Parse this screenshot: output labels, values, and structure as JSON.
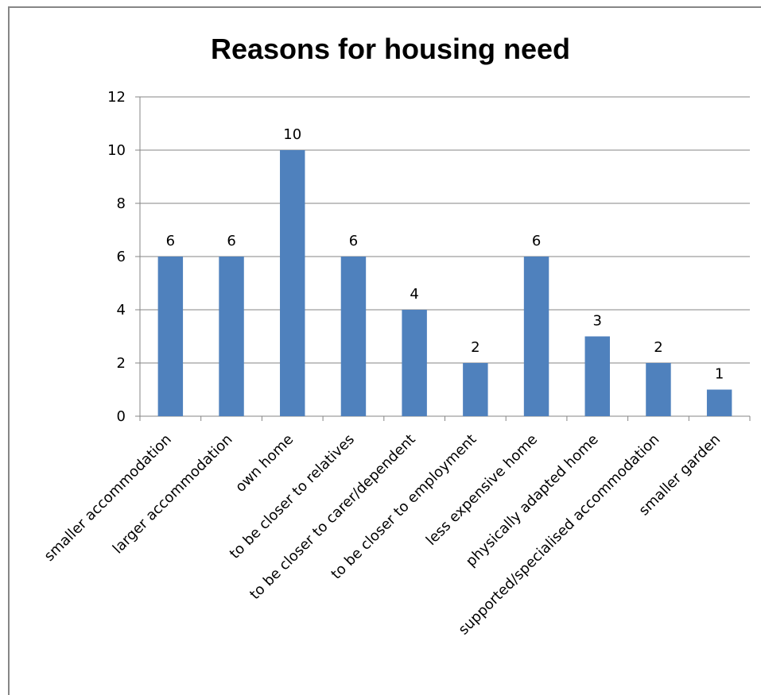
{
  "chart_data": {
    "type": "bar",
    "title": "Reasons for housing need",
    "xlabel": "",
    "ylabel": "",
    "categories": [
      "smaller accommodation",
      "larger accommodation",
      "own home",
      "to be closer to relatives",
      "to be closer to carer/dependent",
      "to be closer to employment",
      "less expensive home",
      "physically adapted home",
      "supported/specialised accommodation",
      "smaller garden"
    ],
    "values": [
      6,
      6,
      10,
      6,
      4,
      2,
      6,
      3,
      2,
      1
    ],
    "ylim": [
      0,
      12
    ],
    "yticks": [
      0,
      2,
      4,
      6,
      8,
      10,
      12
    ],
    "grid": true,
    "legend": "none",
    "data_labels": true,
    "bar_color": "#4F81BD",
    "grid_color": "#868686"
  }
}
